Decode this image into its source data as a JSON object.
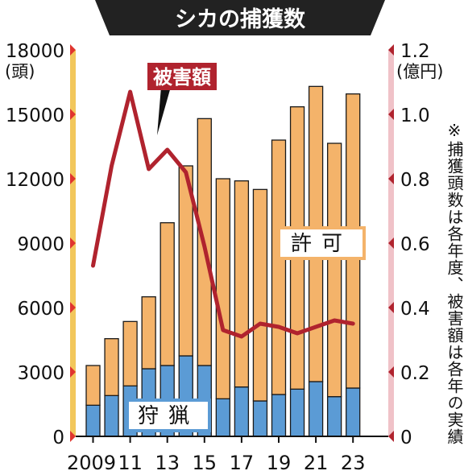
{
  "chart_data": {
    "type": "bar",
    "title": "シカの捕獲数",
    "x": [
      2009,
      2010,
      2011,
      2012,
      2013,
      2014,
      2015,
      2016,
      2017,
      2018,
      2019,
      2020,
      2021,
      2022,
      2023
    ],
    "x_tick_labels": [
      "2009",
      "11",
      "13",
      "15",
      "17",
      "19",
      "21",
      "23"
    ],
    "left_axis": {
      "unit": "(頭)",
      "ylim": [
        0,
        18000
      ],
      "ticks": [
        "0",
        "3000",
        "6000",
        "9000",
        "12000",
        "15000",
        "18000"
      ]
    },
    "right_axis": {
      "unit": "(億円)",
      "ylim": [
        0,
        1.2
      ],
      "ticks": [
        "0",
        "0.2",
        "0.4",
        "0.6",
        "0.8",
        "1.0",
        "1.2"
      ]
    },
    "series": [
      {
        "name": "狩猟",
        "kind": "stacked-bar",
        "axis": "left",
        "color": "#5b9bd5",
        "values": [
          1450,
          1900,
          2350,
          3150,
          3300,
          3750,
          3300,
          1750,
          2300,
          1650,
          1950,
          2200,
          2550,
          1850,
          2250
        ]
      },
      {
        "name": "許可",
        "kind": "stacked-bar",
        "axis": "left",
        "color": "#f4b36a",
        "values": [
          1850,
          2650,
          3000,
          3350,
          6650,
          8850,
          11500,
          10250,
          9600,
          9850,
          11850,
          13150,
          13750,
          11800,
          13700
        ]
      },
      {
        "name": "被害額",
        "kind": "line",
        "axis": "right",
        "color": "#b0232e",
        "values": [
          0.53,
          0.84,
          1.07,
          0.83,
          0.89,
          0.82,
          0.59,
          0.33,
          0.31,
          0.35,
          0.34,
          0.32,
          0.34,
          0.36,
          0.35
        ]
      }
    ],
    "labels": {
      "hunting": "狩猟",
      "permit": "許可",
      "damage": "被害額"
    },
    "note": "※捕獲頭数は各年度、被害額は各年の実績",
    "grid": false,
    "colors": {
      "left_axis_bar": "#f2c75c",
      "right_axis_bar": "#f0c2c8",
      "title_bg": "#222222",
      "title_text": "#ffffff"
    }
  }
}
